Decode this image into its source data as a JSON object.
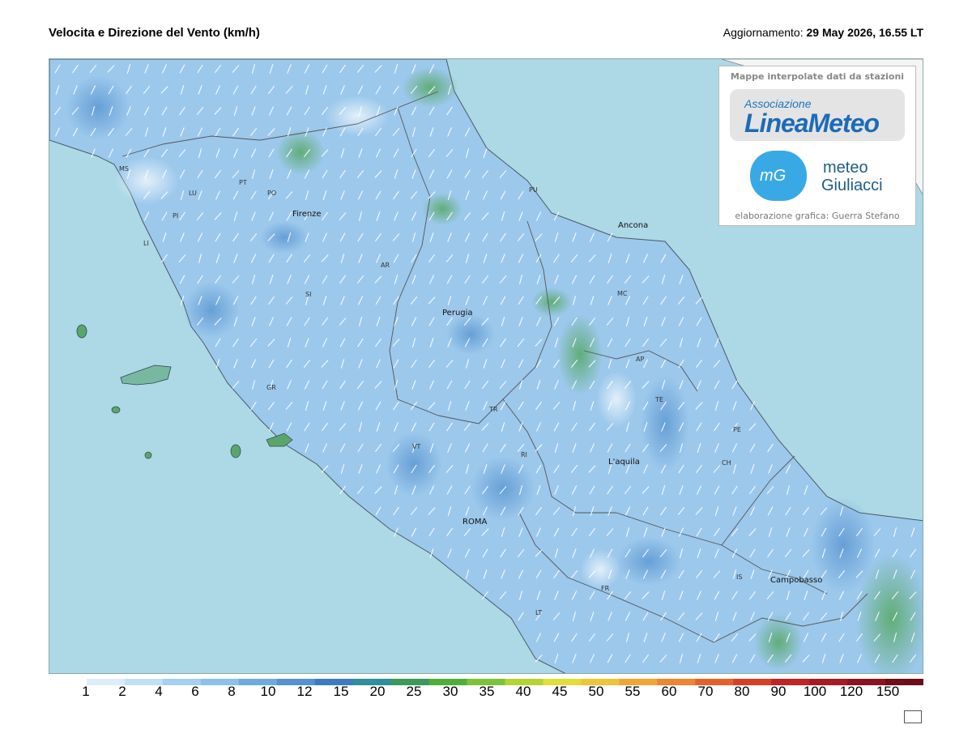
{
  "header": {
    "title": "Velocita e Direzione del Vento  (km/h)",
    "update_label": "Aggiornamento:",
    "update_value": "29 May 2026, 16.55 LT"
  },
  "logo": {
    "header": "Mappe interpolate dati da stazioni",
    "association_label": "Associazione",
    "association_name": "LineaMeteo",
    "mg_mark": "mG",
    "partner_line1": "meteo",
    "partner_line2": "Giuliacci",
    "credit": "elaborazione grafica: Guerra Stefano"
  },
  "cities": {
    "firenze": "Firenze",
    "ancona": "Ancona",
    "perugia": "Perugia",
    "laquila": "L'aquila",
    "roma": "ROMA",
    "campobasso": "Campobasso",
    "ms": "MS",
    "lu": "LU",
    "pi": "PI",
    "li": "LI",
    "pt": "PT",
    "po": "PO",
    "ar": "AR",
    "si": "SI",
    "gr": "GR",
    "pu": "PU",
    "mc": "MC",
    "ap": "AP",
    "te": "TE",
    "tr": "TR",
    "vt": "VT",
    "ri": "RI",
    "pe": "PE",
    "ch": "CH",
    "is": "IS",
    "fr": "FR",
    "lt": "LT"
  },
  "legend": {
    "labels": [
      "1",
      "2",
      "4",
      "6",
      "8",
      "10",
      "12",
      "15",
      "20",
      "25",
      "30",
      "35",
      "40",
      "45",
      "50",
      "55",
      "60",
      "70",
      "80",
      "90",
      "100",
      "120",
      "150"
    ],
    "colors": [
      "#ffffff",
      "#dcedf8",
      "#c2e0f4",
      "#a6d0ef",
      "#8cc1e8",
      "#6faadd",
      "#5592cf",
      "#3d7bbf",
      "#2f8f9a",
      "#3a9a5a",
      "#4fae3c",
      "#7dc23a",
      "#b4d336",
      "#e3dc3b",
      "#f0c43a",
      "#f2a535",
      "#ee8530",
      "#e4622a",
      "#d54026",
      "#c02424",
      "#a51c24",
      "#8a1420",
      "#6d0e18"
    ],
    "units": "km/h"
  },
  "colors": {
    "sea": "#add8e6",
    "land": "#9cc8ec",
    "border": "#555555"
  }
}
